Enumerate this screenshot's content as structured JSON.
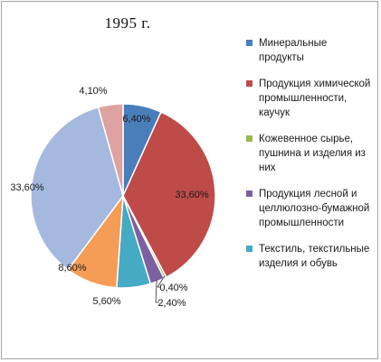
{
  "chart_data": {
    "type": "pie",
    "title": "1995 г.",
    "slices": [
      {
        "label": "Минеральные продукты",
        "value": 6.4,
        "display": "6,40%",
        "color": "#4a7ebb"
      },
      {
        "label": "Продукция химической промышленности, каучук",
        "value": 33.6,
        "display": "33,60%",
        "color": "#be4b48"
      },
      {
        "label": "Кожевенное сырье, пушнина и изделия из них",
        "value": 0.4,
        "display": "0,40%",
        "color": "#98b954"
      },
      {
        "label": "Продукция лесной и целлюлозно-бумажной промышленности",
        "value": 2.4,
        "display": "2,40%",
        "color": "#7d60a0"
      },
      {
        "label": "Текстиль, текстильные изделия и обувь",
        "value": 5.6,
        "display": "5,60%",
        "color": "#46aac5"
      },
      {
        "label": "",
        "value": 8.6,
        "display": "8,60%",
        "color": "#f59d56"
      },
      {
        "label": "",
        "value": 33.6,
        "display": "33,60%",
        "color": "#a5b9df"
      },
      {
        "label": "",
        "value": 4.1,
        "display": "4,10%",
        "color": "#dea2a1"
      }
    ],
    "legend_position": "right",
    "legend_labels": [
      "Минеральные продукты",
      "Продукция химической промышленности, каучук",
      "Кожевенное сырье, пушнина и изделия из них",
      "Продукция лесной и целлюлозно-бумажной промышленности",
      "Текстиль, текстильные изделия и обувь"
    ]
  }
}
